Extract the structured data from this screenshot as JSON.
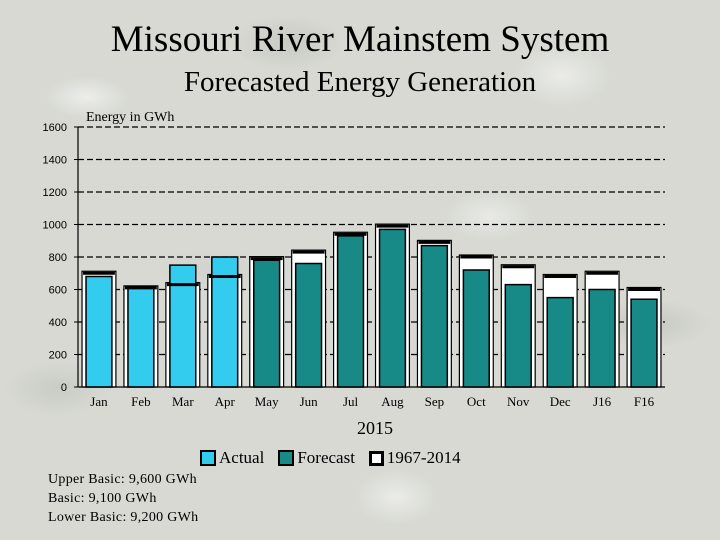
{
  "titles": {
    "main": "Missouri River Mainstem System",
    "sub": "Forecasted Energy Generation"
  },
  "chart_data": {
    "type": "bar",
    "ylabel": "Energy in GWh",
    "xlabel": "2015",
    "ylim": [
      0,
      1600
    ],
    "yticks": [
      0,
      200,
      400,
      600,
      800,
      1000,
      1200,
      1400,
      1600
    ],
    "grid": true,
    "categories": [
      "Jan",
      "Feb",
      "Mar",
      "Apr",
      "May",
      "Jun",
      "Jul",
      "Aug",
      "Sep",
      "Oct",
      "Nov",
      "Dec",
      "J16",
      "F16"
    ],
    "series": [
      {
        "name": "Actual",
        "color": "#33ccee",
        "values": [
          680,
          620,
          750,
          800,
          null,
          null,
          null,
          null,
          null,
          null,
          null,
          null,
          null,
          null
        ]
      },
      {
        "name": "Forecast",
        "color": "#178a87",
        "values": [
          null,
          null,
          null,
          null,
          780,
          760,
          930,
          970,
          870,
          720,
          630,
          550,
          600,
          540
        ]
      },
      {
        "name": "1967-2014",
        "style": "outline",
        "values": [
          700,
          610,
          630,
          680,
          790,
          830,
          940,
          990,
          890,
          800,
          740,
          680,
          700,
          600
        ]
      }
    ]
  },
  "legend": {
    "actual": "Actual",
    "forecast": "Forecast",
    "historical": "1967-2014"
  },
  "notes": {
    "upper": "Upper Basic:  9,600 GWh",
    "basic": "Basic:  9,100 GWh",
    "lower": "Lower Basic:  9,200 GWh"
  }
}
